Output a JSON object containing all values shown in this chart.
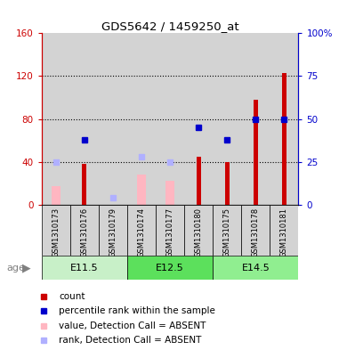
{
  "title": "GDS5642 / 1459250_at",
  "samples": [
    "GSM1310173",
    "GSM1310176",
    "GSM1310179",
    "GSM1310174",
    "GSM1310177",
    "GSM1310180",
    "GSM1310175",
    "GSM1310178",
    "GSM1310181"
  ],
  "age_groups": [
    {
      "label": "E11.5",
      "start": 0,
      "end": 3,
      "color": "#c8f0c8"
    },
    {
      "label": "E12.5",
      "start": 3,
      "end": 6,
      "color": "#5ce05c"
    },
    {
      "label": "E14.5",
      "start": 6,
      "end": 9,
      "color": "#90ee90"
    }
  ],
  "count_values": [
    0,
    38,
    0,
    0,
    0,
    45,
    40,
    98,
    123
  ],
  "absent_value_bars": [
    17,
    0,
    0,
    28,
    22,
    0,
    0,
    0,
    0
  ],
  "absent_rank_dots_pct": [
    25,
    0,
    4,
    28,
    25,
    0,
    0,
    0,
    0
  ],
  "present_rank_dots_pct": [
    0,
    38,
    0,
    0,
    0,
    45,
    38,
    50,
    50
  ],
  "ylim_left": [
    0,
    160
  ],
  "ylim_right": [
    0,
    100
  ],
  "yticks_left": [
    0,
    40,
    80,
    120,
    160
  ],
  "ytick_labels_left": [
    "0",
    "40",
    "80",
    "120",
    "160"
  ],
  "ytick_labels_right": [
    "0",
    "25",
    "50",
    "75",
    "100%"
  ],
  "left_color": "#cc0000",
  "right_color": "#0000cc",
  "absent_bar_color": "#ffb6c1",
  "absent_rank_color": "#b0b0ff",
  "present_rank_color": "#0000cc",
  "bg_color": "#d3d3d3",
  "grid_color": "black",
  "bar_width": 0.4
}
